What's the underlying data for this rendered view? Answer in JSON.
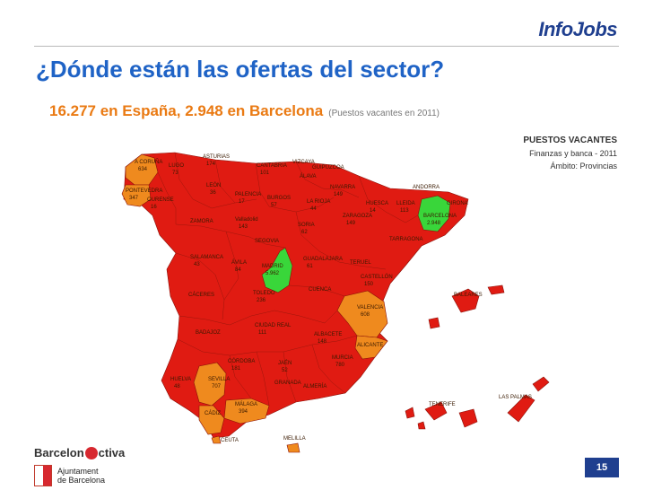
{
  "brand": {
    "logo": "InfoJobs"
  },
  "header": {
    "title": "¿Dónde están las ofertas del sector?",
    "subtitle": "16.277 en España, 2.948 en Barcelona",
    "subtitle_note": "(Puestos vacantes en 2011)"
  },
  "legend": {
    "line1": "PUESTOS VACANTES",
    "line2": "Finanzas y banca - 2011",
    "line3": "Ámbito: Provincias"
  },
  "colors": {
    "high": "#39d63a",
    "medium": "#ef8a1e",
    "low": "#e01b12",
    "border": "#8a1008"
  },
  "provinces": [
    {
      "name": "A CORUÑA",
      "value": "634",
      "level": "medium"
    },
    {
      "name": "LUGO",
      "value": "73",
      "level": "low"
    },
    {
      "name": "ASTURIAS",
      "value": "174",
      "level": "low"
    },
    {
      "name": "CANTABRIA",
      "value": "101",
      "level": "low"
    },
    {
      "name": "VIZCAYA",
      "value": "",
      "level": "low"
    },
    {
      "name": "GUIPUZCOA",
      "value": "",
      "level": "low"
    },
    {
      "name": "ÁLAVA",
      "value": "",
      "level": "low"
    },
    {
      "name": "PONTEVEDRA",
      "value": "347",
      "level": "medium"
    },
    {
      "name": "OURENSE",
      "value": "16",
      "level": "low"
    },
    {
      "name": "LEÓN",
      "value": "36",
      "level": "low"
    },
    {
      "name": "PALENCIA",
      "value": "17",
      "level": "low"
    },
    {
      "name": "BURGOS",
      "value": "57",
      "level": "low"
    },
    {
      "name": "LA RIOJA",
      "value": "44",
      "level": "low"
    },
    {
      "name": "NAVARRA",
      "value": "149",
      "level": "low"
    },
    {
      "name": "HUESCA",
      "value": "14",
      "level": "low"
    },
    {
      "name": "LLEIDA",
      "value": "113",
      "level": "low"
    },
    {
      "name": "GIRONA",
      "value": "",
      "level": "low"
    },
    {
      "name": "BARCELONA",
      "value": "2.948",
      "level": "high"
    },
    {
      "name": "ANDORRA",
      "value": "",
      "level": "low"
    },
    {
      "name": "ZAMORA",
      "value": "",
      "level": "low"
    },
    {
      "name": "Valladolid",
      "value": "143",
      "level": "low"
    },
    {
      "name": "SORIA",
      "value": "62",
      "level": "low"
    },
    {
      "name": "ZARAGOZA",
      "value": "149",
      "level": "low"
    },
    {
      "name": "TARRAGONA",
      "value": "",
      "level": "low"
    },
    {
      "name": "SEGOVIA",
      "value": "",
      "level": "low"
    },
    {
      "name": "SALAMANCA",
      "value": "43",
      "level": "low"
    },
    {
      "name": "ÁVILA",
      "value": "84",
      "level": "low"
    },
    {
      "name": "MADRID",
      "value": "5.962",
      "level": "high"
    },
    {
      "name": "GUADALAJARA",
      "value": "61",
      "level": "low"
    },
    {
      "name": "TERUEL",
      "value": "",
      "level": "low"
    },
    {
      "name": "CASTELLÓN",
      "value": "150",
      "level": "low"
    },
    {
      "name": "CÁCERES",
      "value": "",
      "level": "low"
    },
    {
      "name": "TOLEDO",
      "value": "236",
      "level": "low"
    },
    {
      "name": "CUENCA",
      "value": "",
      "level": "low"
    },
    {
      "name": "VALENCIA",
      "value": "608",
      "level": "medium"
    },
    {
      "name": "BALEARES",
      "value": "",
      "level": "low"
    },
    {
      "name": "CIUDAD REAL",
      "value": "111",
      "level": "low"
    },
    {
      "name": "BADAJOZ",
      "value": "",
      "level": "low"
    },
    {
      "name": "ALBACETE",
      "value": "148",
      "level": "low"
    },
    {
      "name": "ALICANTE",
      "value": "",
      "level": "medium"
    },
    {
      "name": "CÓRDOBA",
      "value": "181",
      "level": "low"
    },
    {
      "name": "JAÉN",
      "value": "52",
      "level": "low"
    },
    {
      "name": "MURCIA",
      "value": "780",
      "level": "low"
    },
    {
      "name": "HUELVA",
      "value": "48",
      "level": "low"
    },
    {
      "name": "SEVILLA",
      "value": "707",
      "level": "medium"
    },
    {
      "name": "GRANADA",
      "value": "",
      "level": "low"
    },
    {
      "name": "ALMERÍA",
      "value": "",
      "level": "low"
    },
    {
      "name": "MÁLAGA",
      "value": "394",
      "level": "medium"
    },
    {
      "name": "CÁDIZ",
      "value": "",
      "level": "medium"
    },
    {
      "name": "LAS PALMAS",
      "value": "",
      "level": "low"
    },
    {
      "name": "TENERIFE",
      "value": "",
      "level": "low"
    },
    {
      "name": "MELILLA",
      "value": "",
      "level": "medium"
    },
    {
      "name": "CEUTA",
      "value": "",
      "level": "medium"
    }
  ],
  "footer": {
    "org": "Barcelon",
    "org_b": "ctiva",
    "city1": "Ajuntament",
    "city2": "de Barcelona",
    "page": "15"
  }
}
